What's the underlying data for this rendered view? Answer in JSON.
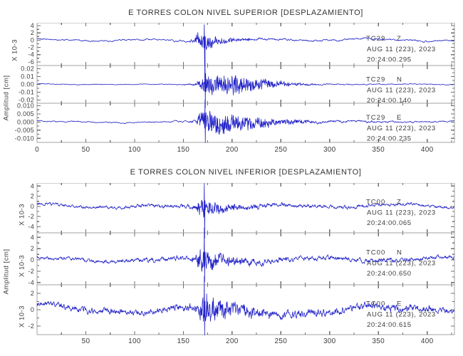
{
  "figure": {
    "background": "#ffffff"
  },
  "chart_data": [
    {
      "type": "line",
      "title": "E TORRES COLON NIVEL SUPERIOR [DESPLAZAMIENTO]",
      "ylabel": "Amplitud [cm]",
      "xlabel": "",
      "xlim": [
        0,
        428
      ],
      "xtick_labels": [
        0,
        50,
        100,
        150,
        200,
        250,
        300,
        350,
        400
      ],
      "xtick_minor_step": 25,
      "grid": false,
      "colors": {
        "trace": "#2323c8",
        "frame": "#a3a3a3",
        "tick": "#6f6f6f",
        "text": "#3c3c3c"
      },
      "traces": [
        {
          "station": "TC29",
          "channel": "Z",
          "date": "AUG 11 (223), 2023",
          "time": "20:24:00.295",
          "scale_label": "X 10-3",
          "ylim": [
            4.8,
            -7.0
          ],
          "ytick_major": [
            4,
            2,
            0,
            -2,
            -4,
            -6
          ],
          "ytick_labels": [
            "4",
            "2",
            "0",
            "-2",
            "-4",
            "-6"
          ],
          "ytick_minor_step": 1,
          "seed": 11,
          "smooth": 0.85,
          "gain": 1.8,
          "wander": [
            0.25,
            0.055
          ],
          "env": [
            [
              0,
              0.4
            ],
            [
              120,
              0.45
            ],
            [
              148,
              0.6
            ],
            [
              160,
              0.8
            ],
            [
              166,
              2.9
            ],
            [
              172,
              2.4
            ],
            [
              180,
              1.7
            ],
            [
              195,
              1.1
            ],
            [
              225,
              0.75
            ],
            [
              270,
              0.55
            ],
            [
              330,
              0.5
            ],
            [
              428,
              0.45
            ]
          ],
          "spike": {
            "x": 171,
            "up": 4.3,
            "down": -7.2
          }
        },
        {
          "station": "TC29",
          "channel": "N",
          "date": "AUG 11 (223), 2023",
          "time": "20:24:00.140",
          "scale_label": null,
          "ylim": [
            0.024,
            -0.024
          ],
          "ytick_major": [
            0.02,
            0.01,
            0,
            -0.01,
            -0.02
          ],
          "ytick_labels": [
            "0.02",
            "0.01",
            "0.00",
            "-0.01",
            "-0.02"
          ],
          "ytick_minor_step": 0.005,
          "seed": 22,
          "smooth": 0.85,
          "gain": 2.0,
          "wander": [
            0.0003,
            0.05
          ],
          "env": [
            [
              0,
              0.0007
            ],
            [
              130,
              0.0008
            ],
            [
              150,
              0.0014
            ],
            [
              162,
              0.002
            ],
            [
              168,
              0.009
            ],
            [
              174,
              0.013
            ],
            [
              182,
              0.0105
            ],
            [
              190,
              0.0125
            ],
            [
              200,
              0.011
            ],
            [
              210,
              0.0125
            ],
            [
              220,
              0.009
            ],
            [
              235,
              0.0062
            ],
            [
              250,
              0.004
            ],
            [
              270,
              0.0022
            ],
            [
              300,
              0.0013
            ],
            [
              428,
              0.0008
            ]
          ],
          "spike": {
            "x": 172,
            "up": 0.055,
            "down": -0.03
          }
        },
        {
          "station": "TC29",
          "channel": "E",
          "date": "AUG 11 (223), 2023",
          "time": "20:24:00.235",
          "scale_label": null,
          "ylim": [
            0.0115,
            -0.0125
          ],
          "ytick_major": [
            0.01,
            0.005,
            0,
            -0.005,
            -0.01
          ],
          "ytick_labels": [
            "0.010",
            "0.005",
            "0.000",
            "-0.005",
            "-0.010"
          ],
          "ytick_minor_step": 0.0025,
          "seed": 33,
          "smooth": 0.85,
          "gain": 2.0,
          "wander": [
            0.0004,
            0.042
          ],
          "env": [
            [
              0,
              0.0006
            ],
            [
              130,
              0.0008
            ],
            [
              155,
              0.001
            ],
            [
              163,
              0.0018
            ],
            [
              168,
              0.0062
            ],
            [
              175,
              0.0075
            ],
            [
              183,
              0.006
            ],
            [
              192,
              0.0066
            ],
            [
              202,
              0.005
            ],
            [
              218,
              0.0045
            ],
            [
              238,
              0.003
            ],
            [
              262,
              0.002
            ],
            [
              300,
              0.0012
            ],
            [
              428,
              0.0008
            ]
          ],
          "spike": {
            "x": 172,
            "up": 0.0135,
            "down": -0.0127
          }
        }
      ]
    },
    {
      "type": "line",
      "title": "E TORRES COLON NIVEL INFERIOR [DESPLAZAMIENTO]",
      "ylabel": "Amplitud [cm]",
      "xlabel": "",
      "xlim": [
        0,
        428
      ],
      "xtick_labels": [
        50,
        100,
        150,
        200,
        250,
        300,
        350,
        400
      ],
      "xtick_minor_step": 25,
      "grid": false,
      "colors": {
        "trace": "#2323c8",
        "frame": "#a3a3a3",
        "tick": "#6f6f6f",
        "text": "#3c3c3c"
      },
      "traces": [
        {
          "station": "TC00",
          "channel": "Z",
          "date": "AUG 11 (223), 2023",
          "time": "20:24:00.065",
          "scale_label": "X 10-3",
          "ylim": [
            4.6,
            -5.2
          ],
          "ytick_major": [
            4,
            2,
            0,
            -2,
            -4
          ],
          "ytick_labels": [
            "4",
            "2",
            "0",
            "-2",
            "-4"
          ],
          "ytick_minor_step": 1,
          "seed": 44,
          "smooth": 0.62,
          "gain": 1.0,
          "wander": [
            0.3,
            0.05
          ],
          "env": [
            [
              0,
              0.5
            ],
            [
              100,
              0.6
            ],
            [
              150,
              0.7
            ],
            [
              163,
              0.9
            ],
            [
              168,
              2.4
            ],
            [
              175,
              2.0
            ],
            [
              185,
              1.5
            ],
            [
              200,
              1.2
            ],
            [
              220,
              0.9
            ],
            [
              260,
              0.7
            ],
            [
              340,
              0.6
            ],
            [
              428,
              0.5
            ]
          ],
          "spike": {
            "x": 171,
            "up": 4.5,
            "down": -6.3
          }
        },
        {
          "station": "TC00",
          "channel": "N",
          "date": "AUG 11 (223), 2023",
          "time": "20:24:00.650",
          "scale_label": "X 10-3",
          "ylim": [
            4.8,
            -4.4
          ],
          "ytick_major": [
            4,
            2,
            0,
            -2,
            -4
          ],
          "ytick_labels": [
            "4",
            "2",
            "0",
            "-2",
            "-4"
          ],
          "ytick_minor_step": 1,
          "seed": 55,
          "smooth": 0.62,
          "gain": 1.0,
          "wander": [
            0.3,
            0.044
          ],
          "env": [
            [
              0,
              0.5
            ],
            [
              90,
              0.6
            ],
            [
              150,
              0.8
            ],
            [
              162,
              1.0
            ],
            [
              168,
              2.6
            ],
            [
              176,
              2.1
            ],
            [
              188,
              1.6
            ],
            [
              205,
              1.2
            ],
            [
              230,
              0.95
            ],
            [
              280,
              0.75
            ],
            [
              428,
              0.6
            ]
          ],
          "spike": {
            "x": 171,
            "up": 5.7,
            "down": -3.9
          }
        },
        {
          "station": "TC00",
          "channel": "E",
          "date": "AUG 11 (223), 2023",
          "time": "20:24:00.615",
          "scale_label": "X 10-3",
          "ylim": [
            3.05,
            -3.05
          ],
          "ytick_major": [
            2,
            0,
            -2
          ],
          "ytick_labels": [
            "2",
            "0",
            "-2"
          ],
          "ytick_minor_step": 1,
          "seed": 66,
          "smooth": 0.62,
          "gain": 0.95,
          "wander": [
            0.4,
            0.036
          ],
          "env": [
            [
              0,
              0.55
            ],
            [
              50,
              0.75
            ],
            [
              110,
              0.7
            ],
            [
              150,
              0.8
            ],
            [
              164,
              1.1
            ],
            [
              170,
              2.4
            ],
            [
              180,
              2.0
            ],
            [
              195,
              1.6
            ],
            [
              215,
              1.2
            ],
            [
              250,
              0.95
            ],
            [
              320,
              0.8
            ],
            [
              390,
              0.85
            ],
            [
              428,
              0.6
            ]
          ],
          "spike": {
            "x": 171,
            "up": 4.1,
            "down": -3.1
          }
        }
      ]
    }
  ]
}
